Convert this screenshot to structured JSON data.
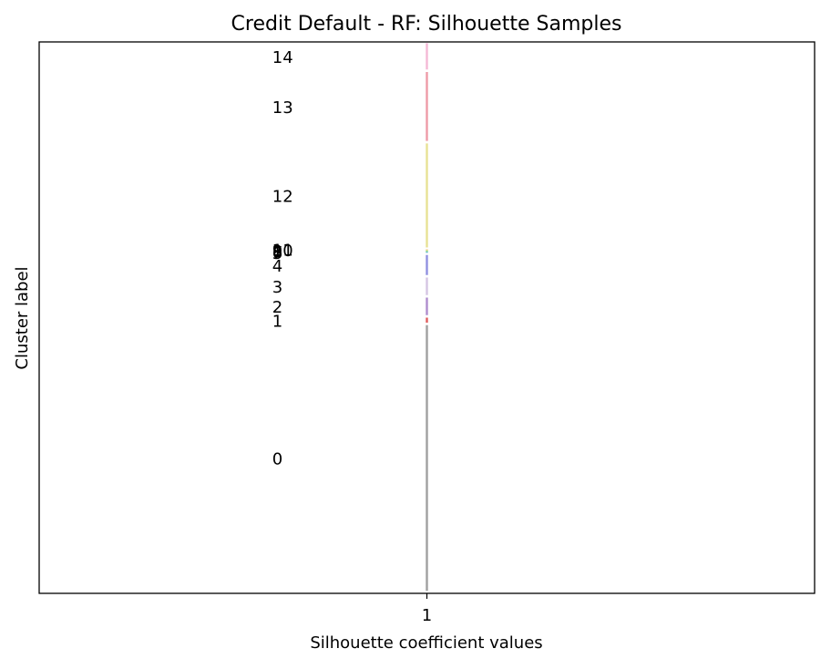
{
  "chart_data": {
    "type": "bar",
    "title": "Credit Default - RF: Silhouette Samples",
    "xlabel": "Silhouette coefficient values",
    "ylabel": "Cluster label",
    "x_ticks": [
      1
    ],
    "xlim": [
      0.95,
      1.05
    ],
    "ylim": [
      0,
      2200
    ],
    "grid": false,
    "clusters": [
      {
        "label": "0",
        "y_lower": 10,
        "y_upper": 1070,
        "value": 1.0,
        "color": "#808080"
      },
      {
        "label": "1",
        "y_lower": 1080,
        "y_upper": 1100,
        "value": 1.0,
        "color": "#d62728"
      },
      {
        "label": "2",
        "y_lower": 1110,
        "y_upper": 1180,
        "value": 1.0,
        "color": "#9467bd"
      },
      {
        "label": "3",
        "y_lower": 1190,
        "y_upper": 1260,
        "value": 1.0,
        "color": "#c7b3d9"
      },
      {
        "label": "4",
        "y_lower": 1270,
        "y_upper": 1350,
        "value": 1.0,
        "color": "#6b6bd6"
      },
      {
        "label": "5",
        "y_lower": 1360,
        "y_upper": 1361,
        "value": 1.0,
        "color": "#1f77b4"
      },
      {
        "label": "6",
        "y_lower": 1362,
        "y_upper": 1363,
        "value": 1.0,
        "color": "#17becf"
      },
      {
        "label": "7",
        "y_lower": 1364,
        "y_upper": 1365,
        "value": 1.0,
        "color": "#2ca02c"
      },
      {
        "label": "8",
        "y_lower": 1366,
        "y_upper": 1367,
        "value": 1.0,
        "color": "#98df8a"
      },
      {
        "label": "9",
        "y_lower": 1368,
        "y_upper": 1369,
        "value": 1.0,
        "color": "#bcbd22"
      },
      {
        "label": "10",
        "y_lower": 1370,
        "y_upper": 1371,
        "value": 1.0,
        "color": "#dbdb8d"
      },
      {
        "label": "11",
        "y_lower": 1372,
        "y_upper": 1373,
        "value": 1.0,
        "color": "#ffbb78"
      },
      {
        "label": "12",
        "y_lower": 1380,
        "y_upper": 1795,
        "value": 1.0,
        "color": "#e0d870"
      },
      {
        "label": "13",
        "y_lower": 1805,
        "y_upper": 2080,
        "value": 1.0,
        "color": "#e87a8a"
      },
      {
        "label": "14",
        "y_lower": 2090,
        "y_upper": 2195,
        "value": 1.0,
        "color": "#f0a0c8"
      }
    ]
  }
}
